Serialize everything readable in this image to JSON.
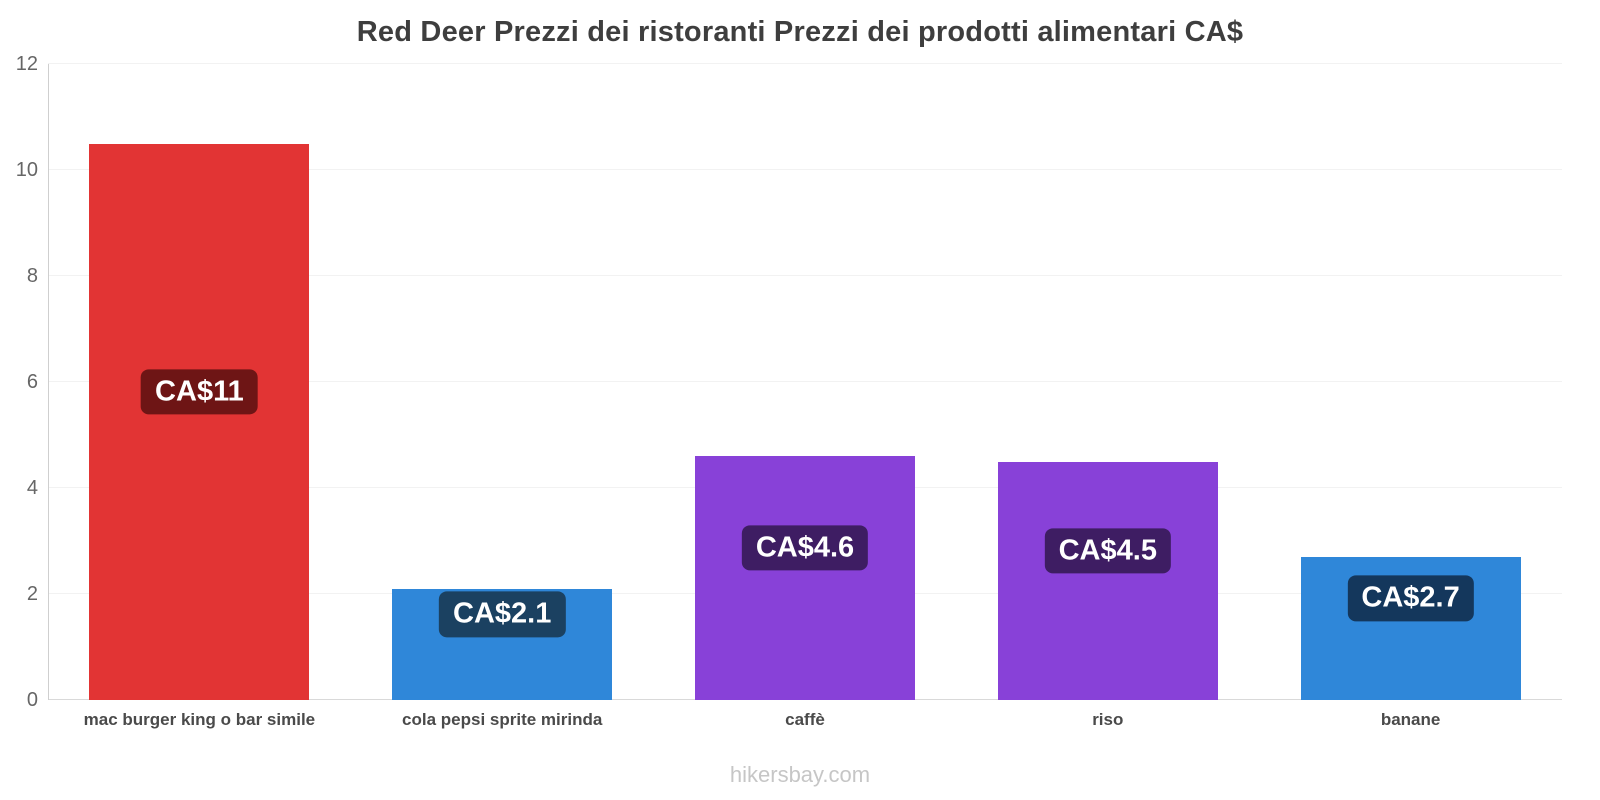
{
  "title": "Red Deer Prezzi dei ristoranti Prezzi dei prodotti alimentari CA$",
  "footer": "hikersbay.com",
  "chart_data": {
    "type": "bar",
    "title": "Red Deer Prezzi dei ristoranti Prezzi dei prodotti alimentari CA$",
    "categories": [
      "mac burger king o bar simile",
      "cola pepsi sprite mirinda",
      "caffè",
      "riso",
      "banane"
    ],
    "values": [
      10.5,
      2.1,
      4.6,
      4.5,
      2.7
    ],
    "value_labels": [
      "CA$11",
      "CA$2.1",
      "CA$4.6",
      "CA$4.5",
      "CA$2.7"
    ],
    "bar_colors": [
      "#e23434",
      "#2f87d9",
      "#8841d8",
      "#8841d8",
      "#2f87d9"
    ],
    "label_bg_colors": [
      "#6e1515",
      "#1b4161",
      "#3e1d63",
      "#3e1d63",
      "#14375c"
    ],
    "currency": "CA$",
    "xlabel": "",
    "ylabel": "",
    "ylim": [
      0,
      12
    ],
    "yticks": [
      0,
      2,
      4,
      6,
      8,
      10,
      12
    ],
    "grid": true,
    "legend": false
  }
}
